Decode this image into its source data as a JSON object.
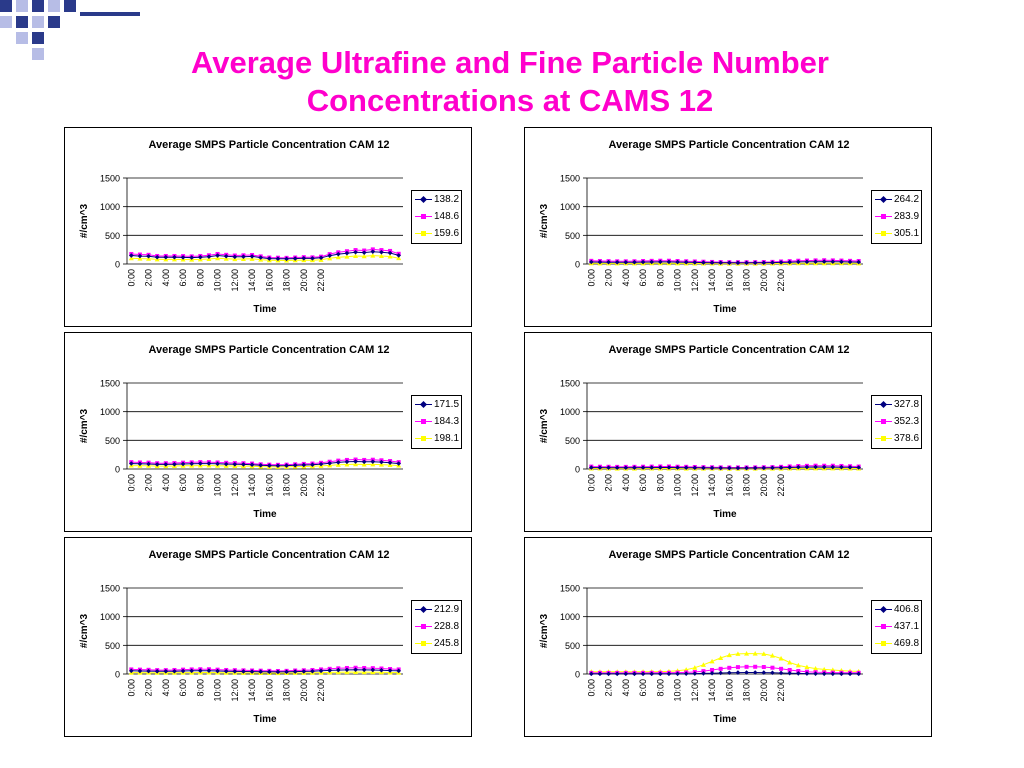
{
  "slide": {
    "title_line1": "Average Ultrafine and Fine Particle Number",
    "title_line2": "Concentrations at CAMS 12"
  },
  "colors": {
    "title": "#ff00cc",
    "series": [
      "#000080",
      "#ff00ff",
      "#ffff00"
    ],
    "deco_dark": "#2a3a8a",
    "deco_light": "#b7bde6"
  },
  "chart_data": [
    {
      "type": "line",
      "title": "Average SMPS Particle Concentration CAM 12",
      "xlabel": "Time",
      "ylabel": "#/cm^3",
      "ylim": [
        0,
        1500
      ],
      "yticks": [
        0,
        500,
        1000,
        1500
      ],
      "xticks": [
        "0:00",
        "2:00",
        "4:00",
        "6:00",
        "8:00",
        "10:00",
        "12:00",
        "14:00",
        "16:00",
        "18:00",
        "20:00",
        "22:00"
      ],
      "legend_position": "right",
      "series": [
        {
          "name": "138.2",
          "values": [
            148,
            138,
            135,
            118,
            118,
            118,
            115,
            112,
            118,
            128,
            148,
            135,
            125,
            128,
            132,
            112,
            95,
            92,
            90,
            95,
            100,
            98,
            108,
            145,
            172,
            188,
            205,
            198,
            215,
            205,
            192,
            150
          ]
        },
        {
          "name": "148.6",
          "values": [
            175,
            165,
            160,
            140,
            140,
            140,
            138,
            133,
            140,
            152,
            175,
            160,
            148,
            152,
            157,
            133,
            113,
            110,
            107,
            113,
            119,
            116,
            128,
            172,
            204,
            223,
            243,
            235,
            255,
            243,
            228,
            178
          ]
        },
        {
          "name": "159.6",
          "values": [
            100,
            94,
            92,
            80,
            80,
            80,
            78,
            76,
            80,
            87,
            100,
            92,
            85,
            87,
            90,
            76,
            65,
            63,
            61,
            65,
            68,
            67,
            73,
            99,
            117,
            128,
            139,
            135,
            146,
            139,
            130,
            102
          ]
        }
      ]
    },
    {
      "type": "line",
      "title": "Average SMPS Particle Concentration CAM 12",
      "xlabel": "Time",
      "ylabel": "#/cm^3",
      "ylim": [
        0,
        1500
      ],
      "yticks": [
        0,
        500,
        1000,
        1500
      ],
      "xticks": [
        "0:00",
        "2:00",
        "4:00",
        "6:00",
        "8:00",
        "10:00",
        "12:00",
        "14:00",
        "16:00",
        "18:00",
        "20:00",
        "22:00"
      ],
      "legend_position": "right",
      "series": [
        {
          "name": "264.2",
          "values": [
            35,
            33,
            32,
            30,
            30,
            31,
            33,
            35,
            36,
            36,
            33,
            31,
            28,
            25,
            23,
            22,
            21,
            20,
            20,
            21,
            22,
            24,
            28,
            32,
            36,
            38,
            40,
            42,
            40,
            38,
            35,
            33
          ]
        },
        {
          "name": "283.9",
          "values": [
            55,
            52,
            50,
            47,
            47,
            48,
            52,
            55,
            57,
            57,
            52,
            48,
            44,
            40,
            36,
            34,
            32,
            31,
            31,
            32,
            34,
            37,
            44,
            50,
            57,
            60,
            63,
            66,
            63,
            60,
            55,
            52
          ]
        },
        {
          "name": "305.1",
          "values": [
            12,
            11,
            11,
            10,
            10,
            10,
            11,
            12,
            12,
            12,
            11,
            10,
            9,
            8,
            8,
            7,
            7,
            7,
            7,
            7,
            7,
            8,
            9,
            11,
            12,
            13,
            14,
            14,
            14,
            13,
            12,
            11
          ]
        }
      ]
    },
    {
      "type": "line",
      "title": "Average SMPS Particle Concentration CAM 12",
      "xlabel": "Time",
      "ylabel": "#/cm^3",
      "ylim": [
        0,
        1500
      ],
      "yticks": [
        0,
        500,
        1000,
        1500
      ],
      "xticks": [
        "0:00",
        "2:00",
        "4:00",
        "6:00",
        "8:00",
        "10:00",
        "12:00",
        "14:00",
        "16:00",
        "18:00",
        "20:00",
        "22:00"
      ],
      "legend_position": "right",
      "series": [
        {
          "name": "171.5",
          "values": [
            95,
            90,
            88,
            80,
            80,
            82,
            88,
            92,
            95,
            95,
            90,
            85,
            82,
            80,
            75,
            65,
            60,
            58,
            60,
            65,
            70,
            75,
            85,
            100,
            115,
            125,
            130,
            125,
            128,
            120,
            110,
            95
          ]
        },
        {
          "name": "184.3",
          "values": [
            120,
            114,
            111,
            101,
            101,
            104,
            111,
            116,
            120,
            120,
            114,
            108,
            104,
            101,
            95,
            82,
            76,
            73,
            76,
            82,
            89,
            95,
            108,
            127,
            146,
            158,
            165,
            158,
            162,
            152,
            139,
            120
          ]
        },
        {
          "name": "198.1",
          "values": [
            60,
            57,
            56,
            51,
            51,
            52,
            56,
            58,
            60,
            60,
            57,
            54,
            52,
            51,
            48,
            41,
            38,
            37,
            38,
            41,
            44,
            48,
            54,
            63,
            73,
            79,
            82,
            79,
            81,
            76,
            70,
            60
          ]
        }
      ]
    },
    {
      "type": "line",
      "title": "Average SMPS Particle Concentration CAM 12",
      "xlabel": "Time",
      "ylabel": "#/cm^3",
      "ylim": [
        0,
        1500
      ],
      "yticks": [
        0,
        500,
        1000,
        1500
      ],
      "xticks": [
        "0:00",
        "2:00",
        "4:00",
        "6:00",
        "8:00",
        "10:00",
        "12:00",
        "14:00",
        "16:00",
        "18:00",
        "20:00",
        "22:00"
      ],
      "legend_position": "right",
      "series": [
        {
          "name": "327.8",
          "values": [
            25,
            24,
            23,
            22,
            22,
            23,
            24,
            25,
            26,
            26,
            24,
            23,
            21,
            19,
            18,
            17,
            16,
            16,
            16,
            17,
            18,
            20,
            23,
            27,
            31,
            33,
            35,
            34,
            34,
            32,
            29,
            26
          ]
        },
        {
          "name": "352.3",
          "values": [
            42,
            40,
            39,
            37,
            37,
            38,
            40,
            42,
            44,
            44,
            40,
            38,
            35,
            32,
            30,
            28,
            27,
            27,
            27,
            28,
            30,
            33,
            38,
            45,
            52,
            55,
            58,
            57,
            57,
            53,
            48,
            43
          ]
        },
        {
          "name": "378.6",
          "values": [
            8,
            8,
            8,
            7,
            7,
            7,
            8,
            8,
            8,
            8,
            8,
            7,
            7,
            6,
            6,
            6,
            5,
            5,
            5,
            6,
            6,
            6,
            7,
            9,
            10,
            11,
            11,
            11,
            11,
            10,
            9,
            8
          ]
        }
      ]
    },
    {
      "type": "line",
      "title": "Average SMPS Particle Concentration CAM 12",
      "xlabel": "Time",
      "ylabel": "#/cm^3",
      "ylim": [
        0,
        1500
      ],
      "yticks": [
        0,
        500,
        1000,
        1500
      ],
      "xticks": [
        "0:00",
        "2:00",
        "4:00",
        "6:00",
        "8:00",
        "10:00",
        "12:00",
        "14:00",
        "16:00",
        "18:00",
        "20:00",
        "22:00"
      ],
      "legend_position": "right",
      "series": [
        {
          "name": "212.9",
          "values": [
            55,
            52,
            50,
            47,
            47,
            48,
            52,
            55,
            57,
            57,
            52,
            48,
            46,
            44,
            42,
            40,
            38,
            36,
            38,
            42,
            45,
            48,
            55,
            62,
            68,
            72,
            75,
            72,
            70,
            66,
            60,
            55
          ]
        },
        {
          "name": "228.8",
          "values": [
            80,
            76,
            73,
            68,
            68,
            70,
            76,
            80,
            83,
            83,
            76,
            70,
            67,
            64,
            61,
            58,
            55,
            52,
            55,
            61,
            65,
            70,
            80,
            90,
            99,
            105,
            109,
            105,
            102,
            96,
            87,
            80
          ]
        },
        {
          "name": "245.8",
          "values": [
            25,
            24,
            23,
            21,
            21,
            22,
            24,
            25,
            26,
            26,
            24,
            22,
            21,
            20,
            19,
            18,
            17,
            16,
            17,
            19,
            20,
            22,
            25,
            28,
            31,
            33,
            34,
            33,
            32,
            30,
            27,
            25
          ]
        }
      ]
    },
    {
      "type": "line",
      "title": "Average SMPS Particle Concentration CAM 12",
      "xlabel": "Time",
      "ylabel": "#/cm^3",
      "ylim": [
        0,
        1500
      ],
      "yticks": [
        0,
        500,
        1000,
        1500
      ],
      "xticks": [
        "0:00",
        "2:00",
        "4:00",
        "6:00",
        "8:00",
        "10:00",
        "12:00",
        "14:00",
        "16:00",
        "18:00",
        "20:00",
        "22:00"
      ],
      "legend_position": "right",
      "series": [
        {
          "name": "406.8",
          "values": [
            3,
            3,
            3,
            3,
            3,
            3,
            3,
            3,
            3,
            3,
            4,
            5,
            7,
            10,
            14,
            18,
            22,
            25,
            26,
            26,
            25,
            22,
            18,
            14,
            10,
            7,
            5,
            4,
            3,
            3,
            3,
            3
          ]
        },
        {
          "name": "437.1",
          "values": [
            20,
            20,
            20,
            20,
            20,
            20,
            20,
            21,
            21,
            22,
            24,
            28,
            35,
            50,
            70,
            90,
            108,
            120,
            125,
            126,
            122,
            110,
            90,
            70,
            52,
            40,
            32,
            28,
            25,
            23,
            22,
            21
          ]
        },
        {
          "name": "469.8",
          "values": [
            40,
            38,
            38,
            38,
            38,
            38,
            40,
            40,
            42,
            45,
            55,
            75,
            110,
            160,
            220,
            280,
            330,
            350,
            355,
            355,
            350,
            320,
            270,
            200,
            150,
            120,
            95,
            80,
            70,
            60,
            50,
            45
          ]
        }
      ]
    }
  ]
}
